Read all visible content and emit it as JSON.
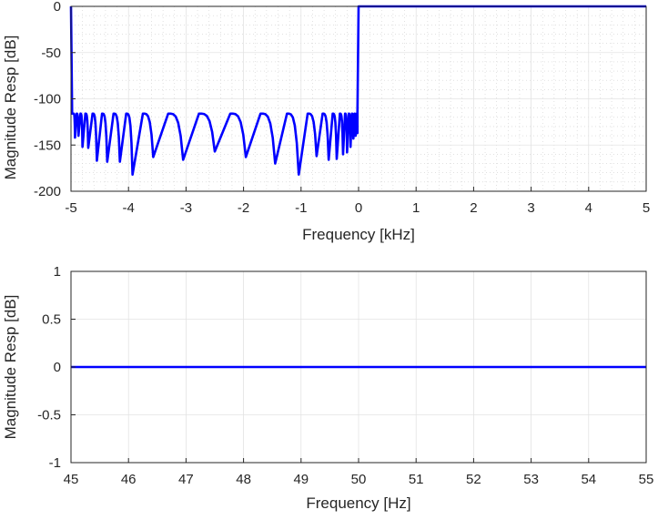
{
  "chart_data": [
    {
      "type": "line",
      "title": "",
      "xlabel": "Frequency [kHz]",
      "ylabel": "Magnitude Resp [dB]",
      "xlim": [
        -5,
        5
      ],
      "ylim": [
        -200,
        0
      ],
      "xticks": [
        -5,
        -4,
        -3,
        -2,
        -1,
        0,
        1,
        2,
        3,
        4,
        5
      ],
      "yticks": [
        0,
        -50,
        -100,
        -150,
        -200
      ],
      "xtick_labels": [
        "-5",
        "-4",
        "-3",
        "-2",
        "-1",
        "0",
        "1",
        "2",
        "3",
        "4",
        "5"
      ],
      "ytick_labels": [
        "0",
        "-50",
        "-100",
        "-150",
        "-200"
      ],
      "grid": true,
      "minor_grid": true,
      "series_color": "#0000ff",
      "series": [
        {
          "passband": {
            "x": [
              0,
              5
            ],
            "y": 0
          },
          "stopband_ripple_peak_db": -116,
          "stopband_null_frequencies": [
            -4.93,
            -4.87,
            -4.8,
            -4.7,
            -4.55,
            -4.37,
            -4.15,
            -3.93,
            -3.57,
            -3.05,
            -2.5,
            -1.96,
            -1.45,
            -1.04,
            -0.73,
            -0.52,
            -0.38,
            -0.27,
            -0.2,
            -0.14,
            -0.09,
            -0.05,
            -0.02
          ],
          "stopband_null_depths_db": [
            -142,
            -140,
            -152,
            -153,
            -167,
            -168,
            -168,
            -182,
            -163,
            -166,
            -157,
            -163,
            -170,
            -182,
            -162,
            -166,
            -165,
            -160,
            -158,
            -152,
            -143,
            -140,
            -137
          ],
          "transitions": [
            {
              "x": [
                -5,
                -4.98
              ],
              "y": [
                0,
                -116
              ]
            },
            {
              "x": [
                -0.02,
                0
              ],
              "y": [
                -116,
                0
              ]
            }
          ]
        }
      ]
    },
    {
      "type": "line",
      "title": "",
      "xlabel": "Frequency [Hz]",
      "ylabel": "Magnitude Resp [dB]",
      "xlim": [
        45,
        55
      ],
      "ylim": [
        -1,
        1
      ],
      "xticks": [
        45,
        46,
        47,
        48,
        49,
        50,
        51,
        52,
        53,
        54,
        55
      ],
      "yticks": [
        1,
        0.5,
        0,
        -0.5,
        -1
      ],
      "xtick_labels": [
        "45",
        "46",
        "47",
        "48",
        "49",
        "50",
        "51",
        "52",
        "53",
        "54",
        "55"
      ],
      "ytick_labels": [
        "1",
        "0.5",
        "0",
        "-0.5",
        "-1"
      ],
      "grid": true,
      "minor_grid": false,
      "series_color": "#0000ff",
      "series": [
        {
          "x": [
            45,
            55
          ],
          "y": [
            0,
            0
          ]
        }
      ]
    }
  ]
}
